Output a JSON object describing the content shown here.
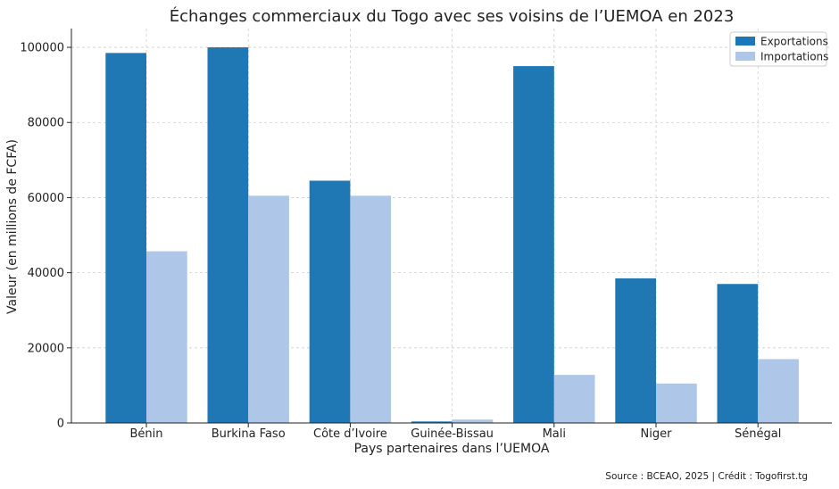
{
  "chart_data": {
    "type": "bar",
    "title": "Échanges commerciaux du Togo avec ses voisins de l’UEMOA en 2023",
    "xlabel": "Pays partenaires dans l’UEMOA",
    "ylabel": "Valeur (en millions de FCFA)",
    "categories": [
      "Bénin",
      "Burkina Faso",
      "Côte d’Ivoire",
      "Guinée-Bissau",
      "Mali",
      "Niger",
      "Sénégal"
    ],
    "series": [
      {
        "name": "Exportations",
        "color": "#1f77b4",
        "values": [
          98500,
          100000,
          64500,
          400,
          95000,
          38500,
          37000
        ]
      },
      {
        "name": "Importations",
        "color": "#aec7e8",
        "values": [
          45700,
          60500,
          60500,
          900,
          12800,
          10500,
          17000
        ]
      }
    ],
    "ylim": [
      0,
      105000
    ],
    "yticks": [
      0,
      20000,
      40000,
      60000,
      80000,
      100000
    ],
    "grid": true,
    "legend_position": "top-right"
  },
  "footer": {
    "source": "Source : BCEAO, 2025 | Crédit : Togofirst.tg"
  }
}
